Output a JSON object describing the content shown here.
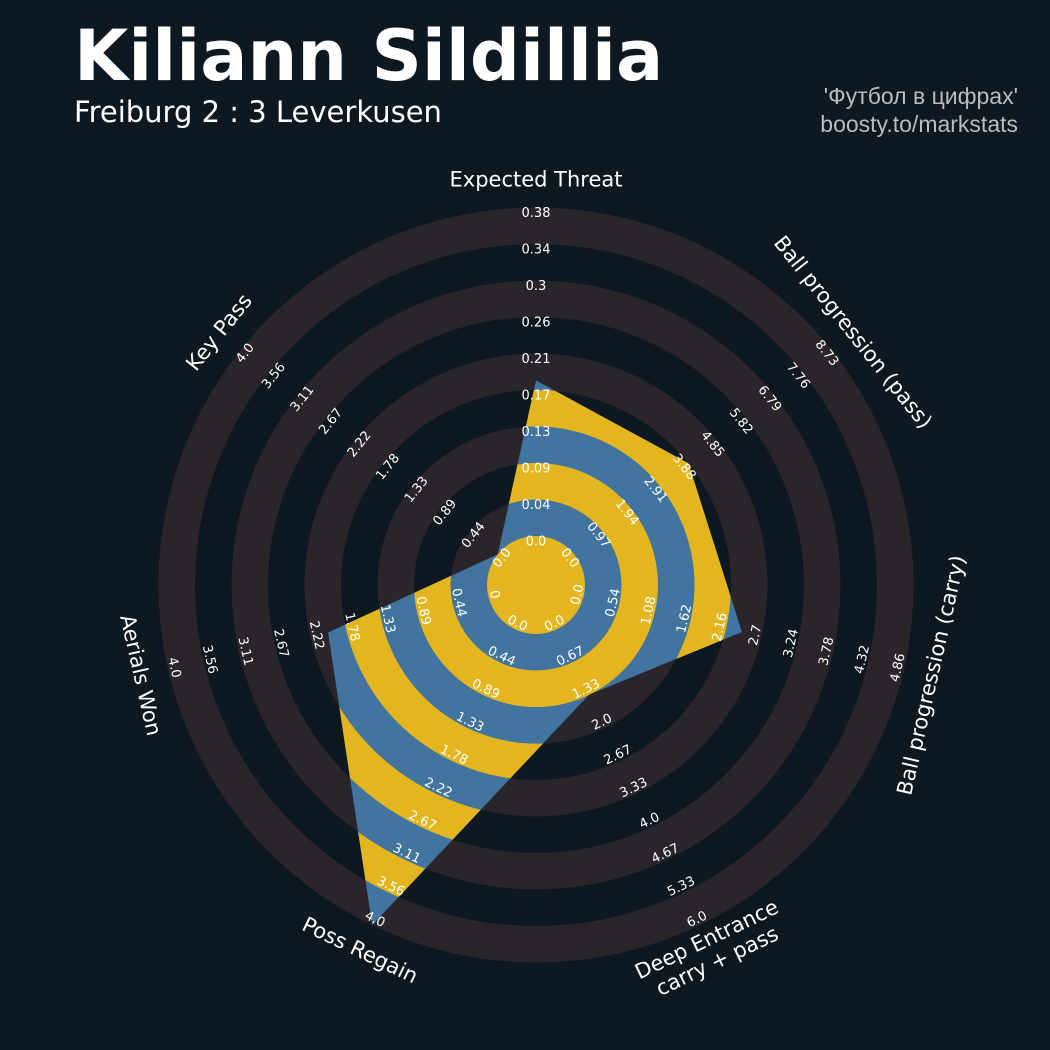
{
  "header": {
    "title": "Kiliann Sildillia",
    "subtitle": "Freiburg 2 : 3 Leverkusen",
    "credit_line1": "'Футбол в цифрах'",
    "credit_line2": "boosty.to/markstats"
  },
  "colors": {
    "background": "#0e1820",
    "ring": "#29252b",
    "fill_primary": "#e3b61f",
    "fill_secondary": "#41749e",
    "text": "#ffffff",
    "credit": "#b9bcc0"
  },
  "chart_data": {
    "type": "radar",
    "params": [
      {
        "label": "Expected Threat",
        "tick_labels": [
          "0.0",
          "0.04",
          "0.09",
          "0.13",
          "0.17",
          "0.21",
          "0.26",
          "0.3",
          "0.34",
          "0.38"
        ],
        "value": 0.18,
        "min": 0.0,
        "max": 0.38
      },
      {
        "label": "Ball progression (pass)",
        "tick_labels": [
          "0.0",
          "0.97",
          "1.94",
          "2.91",
          "3.88",
          "4.85",
          "5.82",
          "6.79",
          "7.76",
          "8.73"
        ],
        "value": 3.88,
        "min": 0.0,
        "max": 8.73
      },
      {
        "label": "Ball progression (carry)",
        "tick_labels": [
          "0.0",
          "0.54",
          "1.08",
          "1.62",
          "2.16",
          "2.7",
          "3.24",
          "3.78",
          "4.32",
          "4.86"
        ],
        "value": 2.4,
        "min": 0.0,
        "max": 4.86
      },
      {
        "label": "Deep Entrance\ncarry + pass",
        "tick_labels": [
          "0.0",
          "0.67",
          "1.33",
          "2.0",
          "2.67",
          "3.33",
          "4.0",
          "4.67",
          "5.33",
          "6.0"
        ],
        "value": 1.33,
        "min": 0.0,
        "max": 6.0
      },
      {
        "label": "Poss Regain",
        "tick_labels": [
          "0.0",
          "0.44",
          "0.89",
          "1.33",
          "1.78",
          "2.22",
          "2.67",
          "3.11",
          "3.56",
          "4.0"
        ],
        "value": 4.0,
        "min": 0.0,
        "max": 4.0
      },
      {
        "label": "Aerials Won",
        "tick_labels": [
          "0",
          "0.44",
          "0.89",
          "1.33",
          "1.78",
          "2.22",
          "2.67",
          "3.11",
          "3.56",
          "4.0"
        ],
        "value": 2.0,
        "min": 0.0,
        "max": 4.0
      },
      {
        "label": "Key Pass",
        "tick_labels": [
          "0.0",
          "0.44",
          "0.89",
          "1.33",
          "1.78",
          "2.22",
          "2.67",
          "3.11",
          "3.56",
          "4.0"
        ],
        "value": 0.0,
        "min": 0.0,
        "max": 4.0
      }
    ],
    "ring_count": 9,
    "legend": "none",
    "grid": false
  }
}
